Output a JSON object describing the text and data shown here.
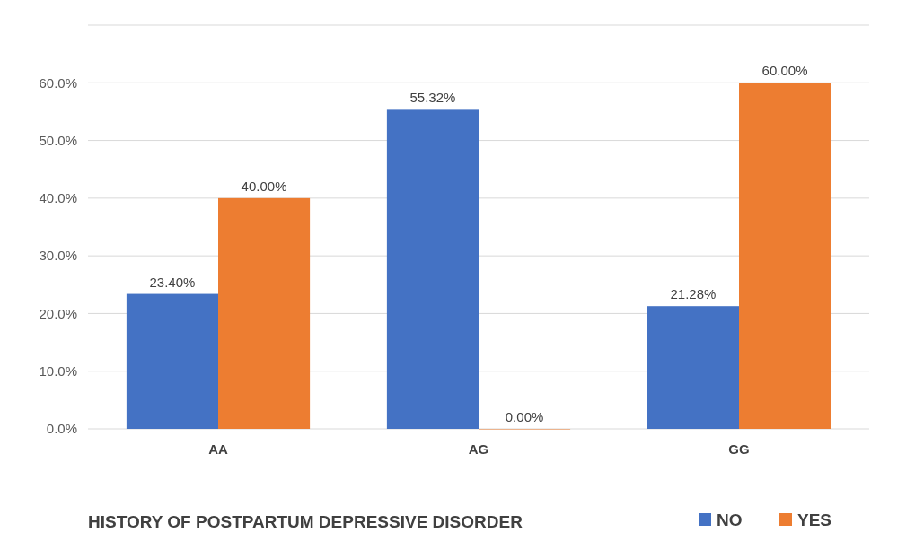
{
  "chart_data": {
    "type": "bar",
    "xlabel": "HISTORY OF POSTPARTUM DEPRESSIVE DISORDER",
    "categories": [
      "AA",
      "AG",
      "GG"
    ],
    "series": [
      {
        "name": "NO",
        "color": "#4472c4",
        "values": [
          23.4,
          55.32,
          21.28
        ],
        "value_labels": [
          "23.40%",
          "55.32%",
          "21.28%"
        ]
      },
      {
        "name": "YES",
        "color": "#ed7d31",
        "values": [
          40.0,
          0.0,
          60.0
        ],
        "value_labels": [
          "40.00%",
          "0.00%",
          "60.00%"
        ]
      }
    ],
    "ylim": [
      0,
      70
    ],
    "yticks": [
      {
        "value": 0,
        "label": "0.0%"
      },
      {
        "value": 10,
        "label": "10.0%"
      },
      {
        "value": 20,
        "label": "20.0%"
      },
      {
        "value": 30,
        "label": "30.0%"
      },
      {
        "value": 40,
        "label": "40.0%"
      },
      {
        "value": 50,
        "label": "50.0%"
      },
      {
        "value": 60,
        "label": "60.0%"
      },
      {
        "value": 70,
        "label": null
      }
    ],
    "grid": "y",
    "legend": "bottom right"
  }
}
